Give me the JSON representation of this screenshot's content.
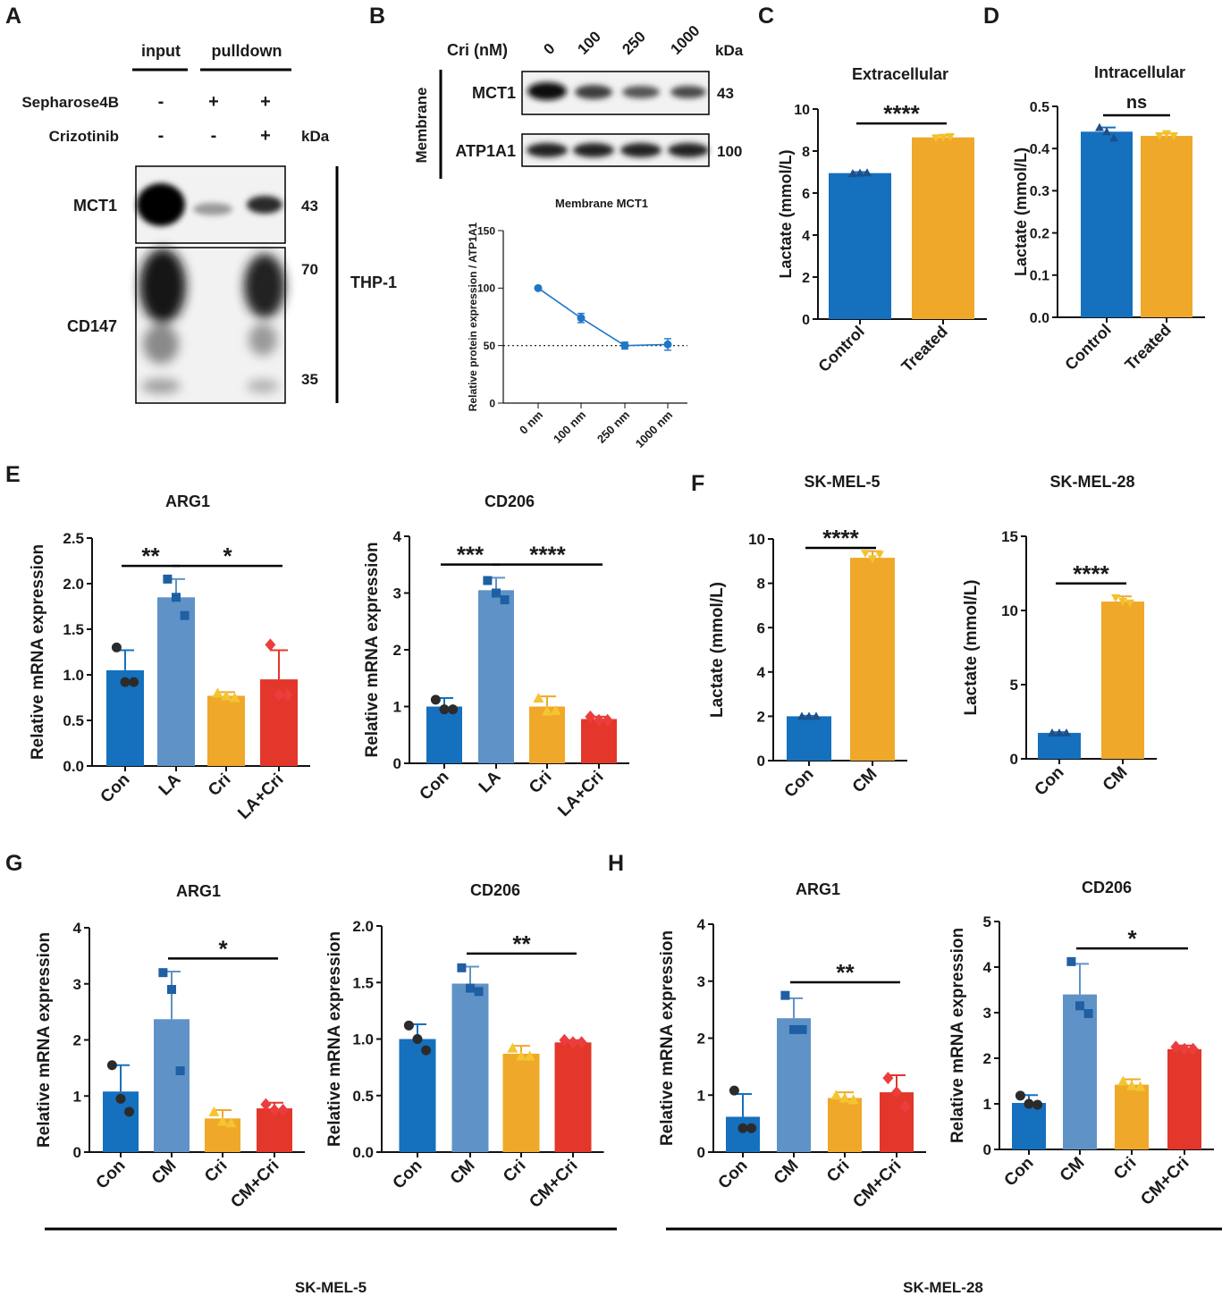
{
  "panel_letters": [
    "A",
    "B",
    "C",
    "D",
    "E",
    "F",
    "G",
    "H"
  ],
  "colors": {
    "con": "#1570be",
    "la": "#5f93c7",
    "cri": "#efa82a",
    "combo": "#e2372a",
    "treated": "#efa82a",
    "line": "#1f77c7",
    "blot_band": "#111111",
    "blot_bg": "#f2f2f2"
  },
  "panel_a": {
    "header_input": "input",
    "header_pulldown": "pulldown",
    "row_labels": [
      "Sepharose4B",
      "Crizotinib"
    ],
    "row_signs": [
      [
        "-",
        "+",
        "+"
      ],
      [
        "-",
        "-",
        "+"
      ]
    ],
    "kda_label": "kDa",
    "blot_labels": [
      "MCT1",
      "CD147"
    ],
    "markers": [
      "43",
      "70",
      "35"
    ],
    "cell_label": "THP-1"
  },
  "panel_b": {
    "cri_label": "Cri (nM)",
    "doses": [
      "0",
      "100",
      "250",
      "1000"
    ],
    "kda_label": "kDa",
    "side_label": "Membrane",
    "blot_labels": [
      "MCT1",
      "ATP1A1"
    ],
    "markers": [
      "43",
      "100"
    ]
  },
  "chart_data": [
    {
      "id": "B",
      "type": "line",
      "title": "Membrane MCT1",
      "ylabel": "Relative protein  expression / ATP1A1",
      "xlabel": "",
      "categories": [
        "0 nm",
        "100 nm",
        "250 nm",
        "1000 nm"
      ],
      "values": [
        100,
        74,
        50,
        51
      ],
      "errors": [
        0,
        4,
        3,
        5
      ],
      "ylim": [
        0,
        150
      ],
      "yticks": [
        "0",
        "50",
        "100",
        "150"
      ],
      "reference_line": 50
    },
    {
      "id": "C",
      "type": "bar",
      "title": "Extracellular",
      "ylabel": "Lactate (mmol/L)",
      "categories": [
        "Control",
        "Treated"
      ],
      "values": [
        6.95,
        8.65
      ],
      "errors": [
        0.05,
        0.08
      ],
      "ylim": [
        0,
        10
      ],
      "yticks": [
        "0",
        "2",
        "4",
        "6",
        "8",
        "10"
      ],
      "points": [
        [
          6.93,
          6.95,
          6.97
        ],
        [
          8.62,
          8.65,
          8.68
        ]
      ],
      "comparisons": [
        {
          "from": 0,
          "to": 1,
          "label": "****"
        }
      ]
    },
    {
      "id": "D",
      "type": "bar",
      "title": "Intracellular",
      "ylabel": "Lactate (mmol/L)",
      "categories": [
        "Control",
        "Treated"
      ],
      "values": [
        0.44,
        0.43
      ],
      "errors": [
        0.01,
        0.006
      ],
      "ylim": [
        0,
        0.5
      ],
      "yticks": [
        "0.0",
        "0.1",
        "0.2",
        "0.3",
        "0.4",
        "0.5"
      ],
      "points": [
        [
          0.45,
          0.44,
          0.425
        ],
        [
          0.43,
          0.435,
          0.43
        ]
      ],
      "comparisons": [
        {
          "from": 0,
          "to": 1,
          "label": "ns"
        }
      ]
    },
    {
      "id": "E-ARG1",
      "type": "bar",
      "title": "ARG1",
      "ylabel": "Relative mRNA expression",
      "categories": [
        "Con",
        "LA",
        "Cri",
        "LA+Cri"
      ],
      "values": [
        1.05,
        1.85,
        0.77,
        0.95
      ],
      "errors": [
        0.22,
        0.2,
        0.04,
        0.32
      ],
      "ylim": [
        0,
        2.5
      ],
      "yticks": [
        "0.0",
        "0.5",
        "1.0",
        "1.5",
        "2.0",
        "2.5"
      ],
      "points": [
        [
          1.3,
          0.92,
          0.92
        ],
        [
          2.05,
          1.85,
          1.65
        ],
        [
          0.8,
          0.77,
          0.75
        ],
        [
          1.33,
          0.78,
          0.78
        ]
      ],
      "comparisons": [
        {
          "from": 0,
          "to": 1,
          "label": "**"
        },
        {
          "from": 1,
          "to": 3,
          "label": "*"
        }
      ]
    },
    {
      "id": "E-CD206",
      "type": "bar",
      "title": "CD206",
      "ylabel": "Relative mRNA expression",
      "categories": [
        "Con",
        "LA",
        "Cri",
        "LA+Cri"
      ],
      "values": [
        1.0,
        3.05,
        1.0,
        0.78
      ],
      "errors": [
        0.15,
        0.22,
        0.18,
        0.04
      ],
      "ylim": [
        0,
        4
      ],
      "yticks": [
        "0",
        "1",
        "2",
        "3",
        "4"
      ],
      "points": [
        [
          1.12,
          0.95,
          0.95
        ],
        [
          3.22,
          3.0,
          2.88
        ],
        [
          1.15,
          0.92,
          0.93
        ],
        [
          0.82,
          0.76,
          0.76
        ]
      ],
      "comparisons": [
        {
          "from": 0,
          "to": 1,
          "label": "***"
        },
        {
          "from": 1,
          "to": 3,
          "label": "****"
        }
      ]
    },
    {
      "id": "F-SK-MEL-5",
      "type": "bar",
      "title": "SK-MEL-5",
      "ylabel": "Lactate (mmol/L)",
      "categories": [
        "Con",
        "CM"
      ],
      "values": [
        2.0,
        9.15
      ],
      "errors": [
        0.02,
        0.3
      ],
      "ylim": [
        0,
        10
      ],
      "yticks": [
        "0",
        "2",
        "4",
        "6",
        "8",
        "10"
      ],
      "points": [
        [
          2.0,
          2.0,
          2.0
        ],
        [
          9.35,
          9.1,
          9.3
        ]
      ],
      "comparisons": [
        {
          "from": 0,
          "to": 1,
          "label": "****"
        }
      ]
    },
    {
      "id": "F-SK-MEL-28",
      "type": "bar",
      "title": "SK-MEL-28",
      "ylabel": "Lactate (mmol/L)",
      "categories": [
        "Con",
        "CM"
      ],
      "values": [
        1.75,
        10.6
      ],
      "errors": [
        0.05,
        0.35
      ],
      "ylim": [
        0,
        15
      ],
      "yticks": [
        "0",
        "5",
        "10",
        "15"
      ],
      "points": [
        [
          1.75,
          1.75,
          1.75
        ],
        [
          10.85,
          10.6,
          10.5
        ]
      ],
      "comparisons": [
        {
          "from": 0,
          "to": 1,
          "label": "****"
        }
      ]
    },
    {
      "id": "G-ARG1",
      "type": "bar",
      "title": "ARG1",
      "ylabel": "Relative mRNA expression",
      "categories": [
        "Con",
        "CM",
        "Cri",
        "CM+Cri"
      ],
      "values": [
        1.08,
        2.37,
        0.6,
        0.78
      ],
      "errors": [
        0.47,
        0.85,
        0.15,
        0.1
      ],
      "ylim": [
        0,
        4
      ],
      "yticks": [
        "0",
        "1",
        "2",
        "3",
        "4"
      ],
      "points": [
        [
          1.55,
          0.95,
          0.72
        ],
        [
          3.2,
          2.9,
          1.45
        ],
        [
          0.72,
          0.55,
          0.52
        ],
        [
          0.85,
          0.75,
          0.75
        ]
      ],
      "comparisons": [
        {
          "from": 1,
          "to": 3,
          "label": "*"
        }
      ]
    },
    {
      "id": "G-CD206",
      "type": "bar",
      "title": "CD206",
      "ylabel": "Relative mRNA expression",
      "categories": [
        "Con",
        "CM",
        "Cri",
        "CM+Cri"
      ],
      "values": [
        1.0,
        1.49,
        0.87,
        0.97
      ],
      "errors": [
        0.13,
        0.15,
        0.07,
        0.02
      ],
      "ylim": [
        0,
        2.0
      ],
      "yticks": [
        "0.0",
        "0.5",
        "1.0",
        "1.5",
        "2.0"
      ],
      "points": [
        [
          1.12,
          1.0,
          0.9
        ],
        [
          1.63,
          1.45,
          1.42
        ],
        [
          0.92,
          0.85,
          0.85
        ],
        [
          0.99,
          0.97,
          0.97
        ]
      ],
      "comparisons": [
        {
          "from": 1,
          "to": 3,
          "label": "**"
        }
      ]
    },
    {
      "id": "H-ARG1",
      "type": "bar",
      "title": "ARG1",
      "ylabel": "Relative mRNA expression",
      "categories": [
        "Con",
        "CM",
        "Cri",
        "CM+Cri"
      ],
      "values": [
        0.62,
        2.35,
        0.95,
        1.05
      ],
      "errors": [
        0.4,
        0.35,
        0.1,
        0.3
      ],
      "ylim": [
        0,
        4
      ],
      "yticks": [
        "0",
        "1",
        "2",
        "3",
        "4"
      ],
      "points": [
        [
          1.08,
          0.42,
          0.42
        ],
        [
          2.75,
          2.15,
          2.15
        ],
        [
          1.0,
          0.95,
          0.92
        ],
        [
          1.3,
          1.05,
          0.8
        ]
      ],
      "comparisons": [
        {
          "from": 1,
          "to": 3,
          "label": "**"
        }
      ]
    },
    {
      "id": "H-CD206",
      "type": "bar",
      "title": "CD206",
      "ylabel": "Relative mRNA expression",
      "categories": [
        "Con",
        "CM",
        "Cri",
        "CM+Cri"
      ],
      "values": [
        1.02,
        3.4,
        1.42,
        2.2
      ],
      "errors": [
        0.17,
        0.67,
        0.12,
        0.08
      ],
      "ylim": [
        0,
        5
      ],
      "yticks": [
        "0",
        "1",
        "2",
        "3",
        "4",
        "5"
      ],
      "points": [
        [
          1.18,
          1.0,
          0.98
        ],
        [
          4.12,
          3.15,
          2.98
        ],
        [
          1.5,
          1.4,
          1.38
        ],
        [
          2.25,
          2.2,
          2.2
        ]
      ],
      "comparisons": [
        {
          "from": 1,
          "to": 3,
          "label": "*"
        }
      ]
    }
  ],
  "group_labels": [
    "SK-MEL-5",
    "SK-MEL-28"
  ]
}
